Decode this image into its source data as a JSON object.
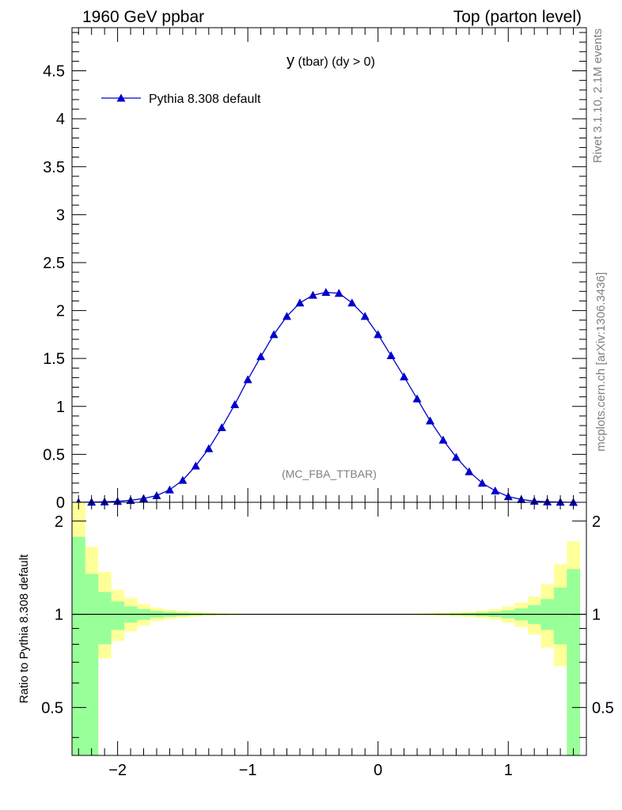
{
  "header": {
    "left": "1960 GeV ppbar",
    "right": "Top (parton level)"
  },
  "side_labels": {
    "rivet": "Rivet 3.1.10,  2.1M events",
    "mcplots": "mcplots.cern.ch [arXiv:1306.3436]"
  },
  "chart_data": [
    {
      "type": "line",
      "title": "y (tbar) (dy > 0)",
      "title_main": "y",
      "title_sub": " (tbar) (dy > 0)",
      "annotation": "(MC_FBA_TTBAR)",
      "xlim": [
        -2.35,
        1.6
      ],
      "ylim": [
        0,
        4.95
      ],
      "yticks": [
        0,
        0.5,
        1,
        1.5,
        2,
        2.5,
        3,
        3.5,
        4,
        4.5
      ],
      "ytick_labels": [
        "0",
        "0.5",
        "1",
        "1.5",
        "2",
        "2.5",
        "3",
        "3.5",
        "4",
        "4.5"
      ],
      "legend_placement": "top-left",
      "series": [
        {
          "name": "Pythia 8.308 default",
          "color": "#0000cc",
          "marker": "triangle",
          "x": [
            -2.3,
            -2.2,
            -2.1,
            -2.0,
            -1.9,
            -1.8,
            -1.7,
            -1.6,
            -1.5,
            -1.4,
            -1.3,
            -1.2,
            -1.1,
            -1.0,
            -0.9,
            -0.8,
            -0.7,
            -0.6,
            -0.5,
            -0.4,
            -0.3,
            -0.2,
            -0.1,
            0.0,
            0.1,
            0.2,
            0.3,
            0.4,
            0.5,
            0.6,
            0.7,
            0.8,
            0.9,
            1.0,
            1.1,
            1.2,
            1.3,
            1.4,
            1.5
          ],
          "y": [
            0.0,
            0.002,
            0.005,
            0.01,
            0.02,
            0.04,
            0.07,
            0.13,
            0.23,
            0.38,
            0.56,
            0.78,
            1.02,
            1.28,
            1.52,
            1.75,
            1.94,
            2.08,
            2.16,
            2.19,
            2.18,
            2.08,
            1.94,
            1.75,
            1.53,
            1.31,
            1.08,
            0.85,
            0.65,
            0.47,
            0.32,
            0.2,
            0.12,
            0.06,
            0.03,
            0.012,
            0.005,
            0.002,
            0.0
          ]
        }
      ]
    },
    {
      "type": "area",
      "ylabel": "Ratio to Pythia 8.308 default",
      "xlim": [
        -2.35,
        1.6
      ],
      "ylim": [
        0.35,
        2.3
      ],
      "log_y": true,
      "xticks": [
        -2,
        -1,
        0,
        1
      ],
      "xtick_labels": [
        "−2",
        "−1",
        "0",
        "1"
      ],
      "yticks": [
        0.5,
        1,
        2
      ],
      "ytick_labels": [
        "0.5",
        "1",
        "2"
      ],
      "reference_line": 1,
      "bins": [
        -2.35,
        -2.25,
        -2.15,
        -2.05,
        -1.95,
        -1.85,
        -1.75,
        -1.65,
        -1.55,
        -1.45,
        -1.35,
        -1.25,
        -1.15,
        -1.05,
        -0.95,
        -0.85,
        -0.75,
        -0.65,
        -0.55,
        -0.45,
        -0.35,
        -0.25,
        -0.15,
        -0.05,
        0.05,
        0.15,
        0.25,
        0.35,
        0.45,
        0.55,
        0.65,
        0.75,
        0.85,
        0.95,
        1.05,
        1.15,
        1.25,
        1.35,
        1.45,
        1.55
      ],
      "bands": [
        {
          "name": "stat",
          "color": "#99ff99",
          "upper": [
            1.78,
            1.35,
            1.18,
            1.1,
            1.06,
            1.04,
            1.025,
            1.018,
            1.012,
            1.008,
            1.006,
            1.004,
            1.003,
            1.002,
            1.002,
            1.002,
            1.002,
            1.002,
            1.002,
            1.002,
            1.002,
            1.002,
            1.002,
            1.002,
            1.002,
            1.002,
            1.003,
            1.004,
            1.005,
            1.007,
            1.01,
            1.014,
            1.02,
            1.03,
            1.045,
            1.07,
            1.12,
            1.22,
            1.4
          ],
          "lower": [
            0.35,
            0.35,
            0.8,
            0.89,
            0.94,
            0.96,
            0.975,
            0.982,
            0.988,
            0.992,
            0.994,
            0.996,
            0.997,
            0.998,
            0.998,
            0.998,
            0.998,
            0.998,
            0.998,
            0.998,
            0.998,
            0.998,
            0.998,
            0.998,
            0.998,
            0.998,
            0.997,
            0.996,
            0.995,
            0.993,
            0.99,
            0.986,
            0.98,
            0.97,
            0.955,
            0.93,
            0.89,
            0.8,
            0.35
          ]
        },
        {
          "name": "total",
          "color": "#ffff99",
          "upper": [
            2.3,
            1.65,
            1.37,
            1.2,
            1.13,
            1.08,
            1.05,
            1.035,
            1.025,
            1.017,
            1.012,
            1.008,
            1.006,
            1.004,
            1.004,
            1.004,
            1.004,
            1.004,
            1.004,
            1.004,
            1.004,
            1.004,
            1.004,
            1.004,
            1.004,
            1.004,
            1.006,
            1.008,
            1.011,
            1.015,
            1.02,
            1.028,
            1.04,
            1.06,
            1.09,
            1.14,
            1.25,
            1.45,
            1.72
          ],
          "lower": [
            0.35,
            0.35,
            0.72,
            0.82,
            0.88,
            0.92,
            0.95,
            0.965,
            0.975,
            0.983,
            0.988,
            0.992,
            0.994,
            0.996,
            0.996,
            0.996,
            0.996,
            0.996,
            0.996,
            0.996,
            0.996,
            0.996,
            0.996,
            0.996,
            0.996,
            0.996,
            0.994,
            0.992,
            0.989,
            0.985,
            0.98,
            0.972,
            0.96,
            0.94,
            0.91,
            0.86,
            0.78,
            0.68,
            0.35
          ]
        }
      ]
    }
  ]
}
